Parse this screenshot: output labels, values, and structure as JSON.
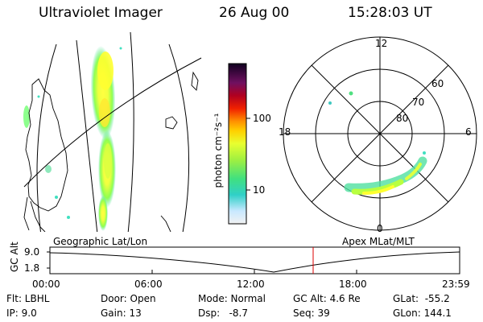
{
  "header": {
    "instrument": "Ultraviolet Imager",
    "date": "26 Aug 00",
    "time": "15:28:03 UT"
  },
  "colorbar": {
    "unit_label": "photon cm⁻²s⁻¹",
    "ticks": [
      "100",
      "10"
    ],
    "scale": "log"
  },
  "polar_plot": {
    "mlt_labels": [
      "12",
      "18",
      "6",
      "0"
    ],
    "lat_labels": [
      "60",
      "70",
      "80"
    ]
  },
  "altitude_panel": {
    "ylabel": "GC Alt",
    "y_ticks": [
      "9.0",
      "1.8"
    ],
    "left_caption": "Geographic Lat/Lon",
    "right_caption": "Apex MLat/MLT",
    "time_ticks": [
      "00:00",
      "06:00",
      "12:00",
      "18:00",
      "23:59"
    ],
    "current_marker_time": "15:28",
    "marker_color": "#dd0000"
  },
  "status": {
    "flt": "Flt: LBHL",
    "ip": "IP:  9.0",
    "door": "Door: Open",
    "gain": "Gain: 13",
    "mode": "Mode: Normal",
    "dsp": "Dsp:   -8.7",
    "gc_alt": "GC Alt: 4.6 Re",
    "seq": "Seq: 39",
    "glat": "GLat:  -55.2",
    "glon": "GLon: 144.1"
  }
}
